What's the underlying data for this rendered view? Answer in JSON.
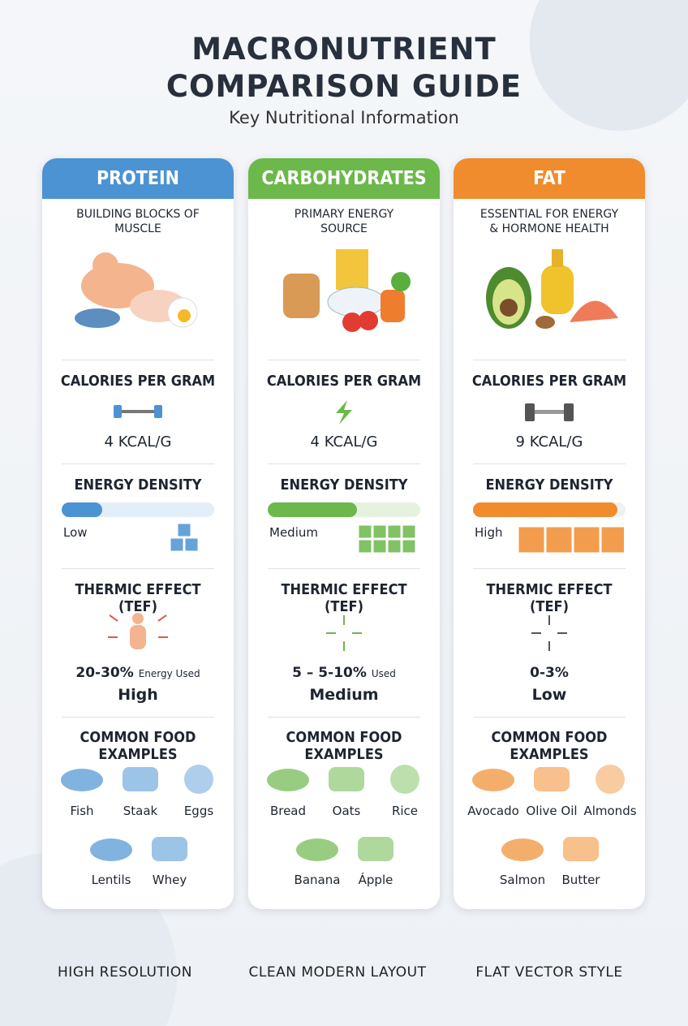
{
  "header": {
    "title": "MACRONUTRIENT COMPARISON GUIDE",
    "subtitle": "Key Nutritional Information"
  },
  "columns": [
    {
      "name": "PROTEIN",
      "tagline": "BUILDING BLOCKS OF MUSCLE",
      "calories_label": "CALORIES PER GRAM",
      "calories_value": "4 KCAL/G",
      "density_label": "ENERGY DENSITY",
      "density_level": "Low",
      "tef_label": "THERMIC EFFECT (TEF)",
      "tef_value": "20-30%",
      "tef_note": "Energy Used",
      "tef_level": "High",
      "foods_label": "COMMON FOOD EXAMPLES",
      "foods": [
        "Fish",
        "Staak",
        "Eggs",
        "Lentils",
        "Whey"
      ]
    },
    {
      "name": "CARBOHYDRATES",
      "tagline": "PRIMARY ENERGY SOURCE",
      "calories_label": "CALORIES PER GRAM",
      "calories_value": "4 KCAL/G",
      "density_label": "ENERGY DENSITY",
      "density_level": "Medium",
      "tef_label": "THERMIC EFFECT (TEF)",
      "tef_value": "5 – 5-10%",
      "tef_note": "Used",
      "tef_level": "Medium",
      "foods_label": "COMMON FOOD EXAMPLES",
      "foods": [
        "Bread",
        "Oats",
        "Rice",
        "Banana",
        "Ápple"
      ]
    },
    {
      "name": "FAT",
      "tagline": "ESSENTIAL FOR ENERGY & HORMONE HEALTH",
      "calories_label": "CALORIES PER GRAM",
      "calories_value": "9 KCAL/G",
      "density_label": "ENERGY DENSITY",
      "density_level": "High",
      "tef_label": "THERMIC EFFECT (TEF)",
      "tef_value": "0-3%",
      "tef_level": "Low",
      "foods_label": "COMMON FOOD EXAMPLES",
      "foods": [
        "Avocado",
        "Olive Oil",
        "Almonds",
        "Salmon",
        "Butter"
      ]
    }
  ],
  "footer": [
    "HIGH RESOLUTION",
    "CLEAN MODERN LAYOUT",
    "FLAT VECTOR STYLE"
  ]
}
